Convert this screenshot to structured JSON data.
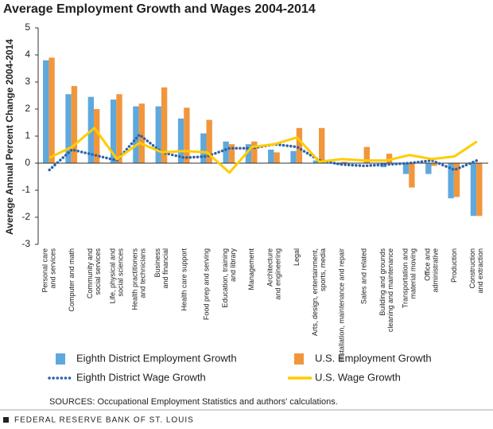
{
  "chart_data": {
    "type": "bar",
    "title": "Average Employment Growth and Wages 2004-2014",
    "y_label": "Average Annual Percent Change 2004-2014",
    "categories": [
      [
        "Personal care",
        "and services"
      ],
      [
        "Computer and math"
      ],
      [
        "Community and",
        "social services"
      ],
      [
        "Life, physical and",
        "social sciences"
      ],
      [
        "Health practitioners",
        "and technicians"
      ],
      [
        "Business",
        "and financial"
      ],
      [
        "Health care support"
      ],
      [
        "Food prep and serving"
      ],
      [
        "Education, training",
        "and library"
      ],
      [
        "Management"
      ],
      [
        "Architecture",
        "and engineering"
      ],
      [
        "Legal"
      ],
      [
        "Arts, design, entertainment,",
        "sports, media"
      ],
      [
        "Installation, maintenance and repair"
      ],
      [
        "Sales and related"
      ],
      [
        "Building and grounds",
        "cleaning and maintenance"
      ],
      [
        "Transportation and",
        "material moving"
      ],
      [
        "Office and",
        "administrative"
      ],
      [
        "Production"
      ],
      [
        "Construction",
        "and extraction"
      ]
    ],
    "series": [
      {
        "name": "Eighth District Employment Growth",
        "kind": "bar",
        "color": "#5fa8dc",
        "values": [
          3.8,
          2.55,
          2.45,
          2.35,
          2.1,
          2.1,
          1.65,
          1.1,
          0.8,
          0.7,
          0.5,
          0.45,
          0.1,
          -0.05,
          0.0,
          -0.15,
          -0.4,
          -0.4,
          -1.3,
          -1.95
        ]
      },
      {
        "name": "U.S. Employment Growth",
        "kind": "bar",
        "color": "#f2963c",
        "values": [
          3.9,
          2.85,
          2.0,
          2.55,
          2.2,
          2.8,
          2.05,
          1.6,
          0.7,
          0.8,
          0.4,
          1.3,
          1.3,
          0.05,
          0.6,
          0.35,
          -0.9,
          -0.1,
          -1.25,
          -1.95
        ]
      },
      {
        "name": "Eighth District Wage Growth",
        "kind": "dotted-line",
        "color": "#2e63a8",
        "values": [
          -0.25,
          0.5,
          0.3,
          0.1,
          1.05,
          0.4,
          0.2,
          0.25,
          0.55,
          0.55,
          0.7,
          0.6,
          0.1,
          -0.05,
          -0.1,
          -0.05,
          0.0,
          0.1,
          -0.25,
          0.1
        ]
      },
      {
        "name": "U.S. Wage Growth",
        "kind": "line",
        "color": "#ffcc00",
        "values": [
          0.2,
          0.6,
          1.3,
          0.15,
          0.75,
          0.4,
          0.45,
          0.4,
          -0.35,
          0.6,
          0.7,
          0.95,
          0.05,
          0.15,
          0.1,
          0.1,
          0.3,
          0.15,
          0.25,
          0.8
        ]
      }
    ],
    "ylim": [
      -3,
      5
    ],
    "yticks": [
      -3,
      -2,
      -1,
      0,
      1,
      2,
      3,
      4,
      5
    ],
    "grid": false,
    "legend": "bottom",
    "source": "SOURCES: Occupational Employment Statistics and authors' calculations.",
    "footer": "FEDERAL RESERVE BANK OF ST. LOUIS"
  }
}
